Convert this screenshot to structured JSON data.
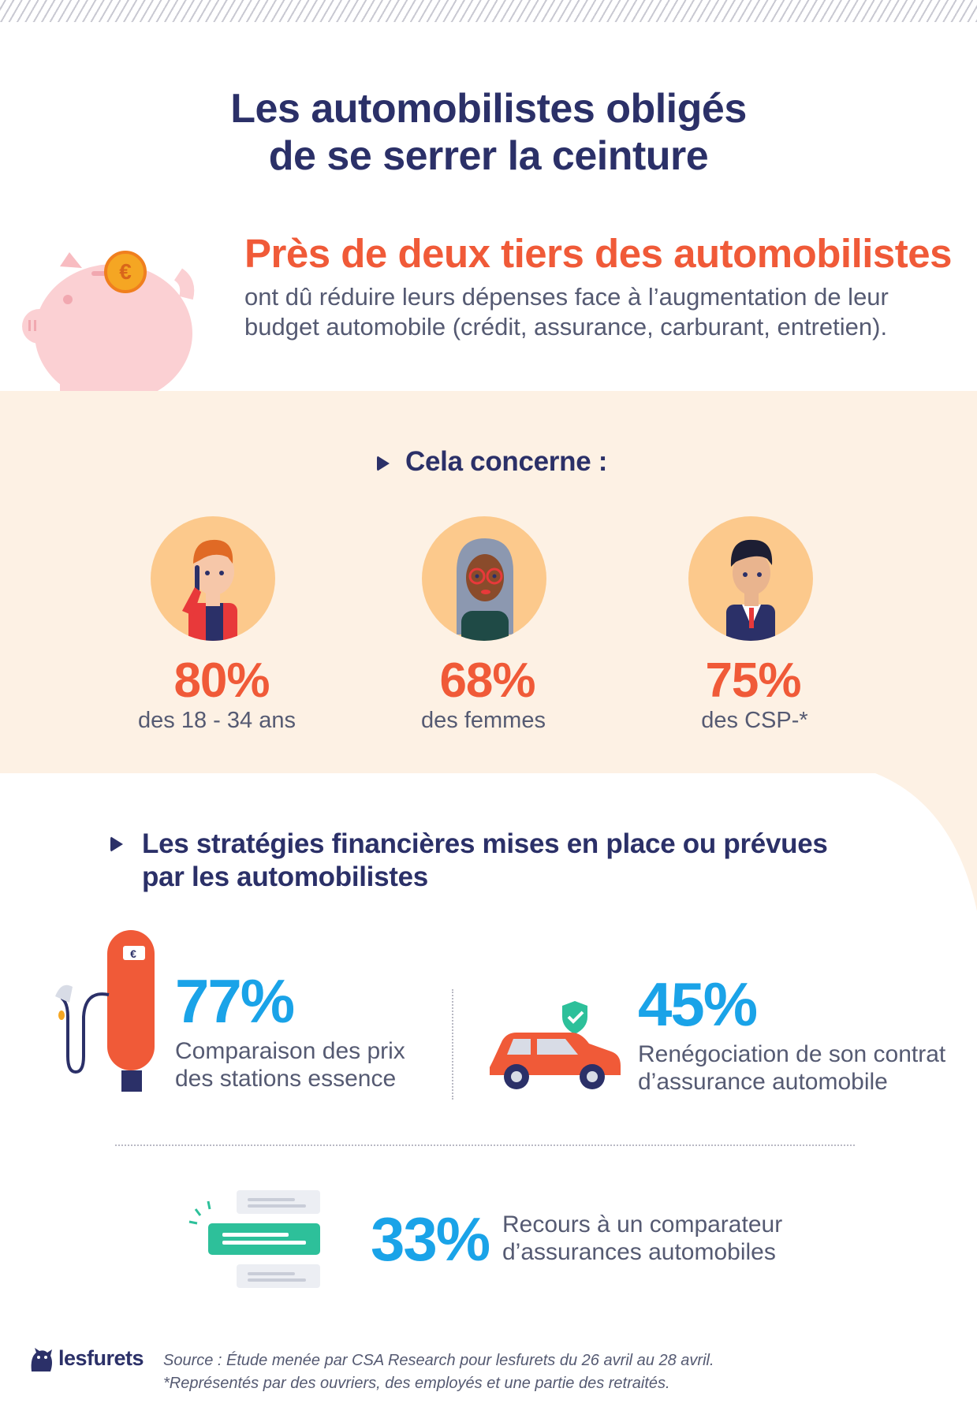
{
  "title": {
    "line1": "Les automobilistes obligés",
    "line2": "de se serrer la ceinture"
  },
  "intro": {
    "headline": "Près de deux tiers des automobilistes",
    "text": "ont dû réduire leurs dépenses face à l’augmentation de leur budget automobile (crédit, assurance, carburant, entretien).",
    "coin_symbol": "€"
  },
  "concerne": {
    "heading": "Cela concerne :",
    "items": [
      {
        "value": "80%",
        "label": "des 18 - 34 ans"
      },
      {
        "value": "68%",
        "label": "des femmes"
      },
      {
        "value": "75%",
        "label": "des CSP-*"
      }
    ]
  },
  "strategies": {
    "heading": "Les stratégies financières mises en place ou prévues par les automobilistes",
    "pump_symbol": "€",
    "items": [
      {
        "value": "77%",
        "label_line1": "Comparaison des prix",
        "label_line2": "des stations essence"
      },
      {
        "value": "45%",
        "label_line1": "Renégociation de son contrat",
        "label_line2": "d’assurance automobile"
      },
      {
        "value": "33%",
        "label_line1": "Recours à un comparateur",
        "label_line2": "d’assurances automobiles"
      }
    ]
  },
  "footer": {
    "logo": "lesfurets",
    "source": "Source : Étude menée par CSA Research pour lesfurets du 26 avril au 28 avril.",
    "note": "*Représentés par des ouvriers, des employés et une partie des retraités."
  },
  "colors": {
    "navy": "#2b3068",
    "orange": "#f05a38",
    "blue": "#1aa3e8",
    "band": "#fdf1e4",
    "avatar_bg": "#fcc98c",
    "green": "#2dc09a",
    "pink": "#fbd0d3"
  }
}
